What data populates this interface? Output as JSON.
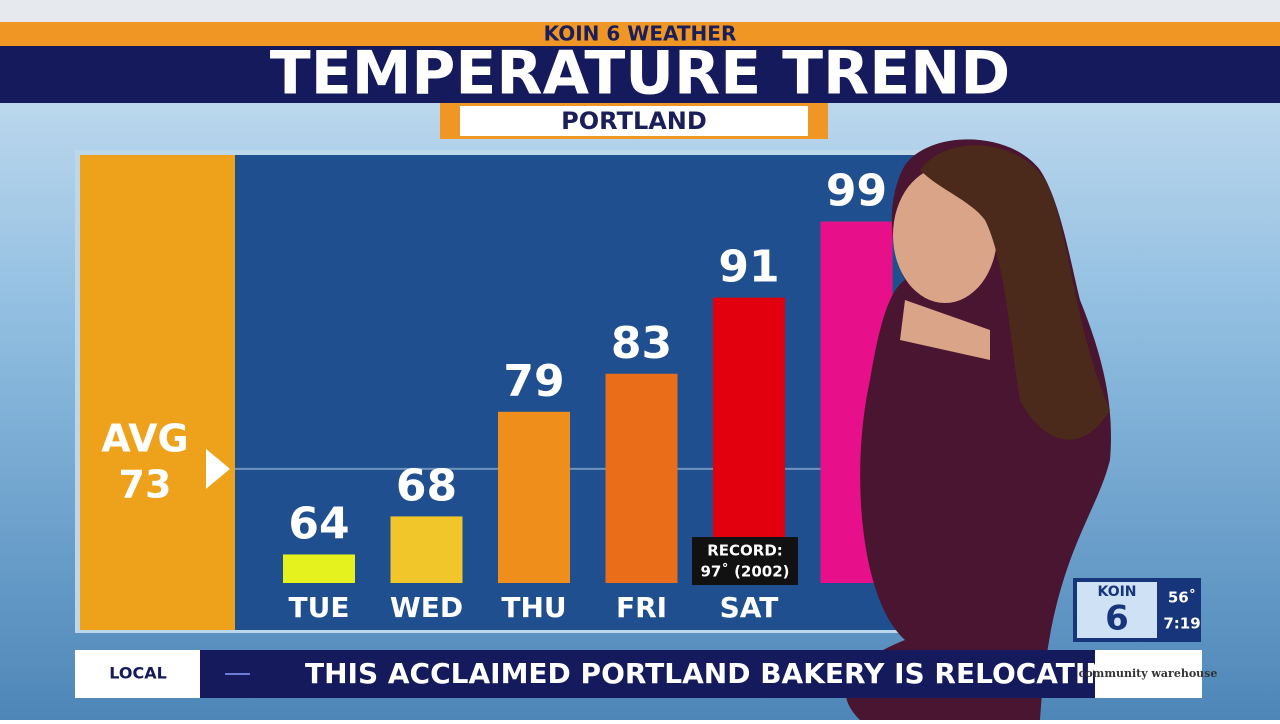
{
  "header": {
    "station": "KOIN 6 WEATHER",
    "title": "TEMPERATURE TREND",
    "location": "PORTLAND"
  },
  "chart_data": {
    "type": "bar",
    "categories": [
      "TUE",
      "WED",
      "THU",
      "FRI",
      "SAT",
      null
    ],
    "values": [
      64,
      68,
      79,
      83,
      91,
      99
    ],
    "colors": [
      "#e6f21e",
      "#f0c62a",
      "#f08e1c",
      "#ea6e1a",
      "#e2000e",
      "#e8108a"
    ],
    "ylim": [
      61,
      106
    ],
    "average": {
      "label": "AVG",
      "value": 73
    },
    "annotations": [
      {
        "category": "SAT",
        "label": "RECORD:",
        "text": "97˚ (2002)"
      }
    ]
  },
  "ticker": {
    "tag": "LOCAL",
    "headline": "THIS ACCLAIMED PORTLAND BAKERY IS RELOCATING",
    "sponsor": "community warehouse"
  },
  "bug": {
    "station": "KOIN",
    "channel": "6",
    "temperature": "56˚",
    "time": "7:19"
  }
}
